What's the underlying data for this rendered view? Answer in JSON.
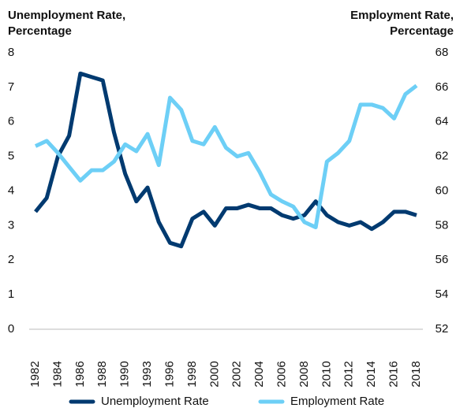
{
  "chart_data": {
    "type": "line",
    "y_label": [
      "Unemployment Rate,",
      "Percentage"
    ],
    "y2_label": [
      "Employment Rate,",
      "Percentage"
    ],
    "categories": [
      "1982",
      null,
      "1984",
      null,
      "1986",
      null,
      "1988",
      null,
      "1990",
      null,
      "1993",
      null,
      "1996",
      null,
      "1998",
      null,
      "2000",
      null,
      "2002",
      null,
      "2004",
      null,
      "2006",
      null,
      "2008",
      null,
      "2010",
      null,
      "2012",
      null,
      "2014",
      null,
      "2016",
      null,
      "2018"
    ],
    "series": [
      {
        "name": "Unemployment Rate",
        "color": "#003a70",
        "axis": "y",
        "values": [
          3.4,
          3.8,
          5.0,
          5.6,
          7.4,
          7.3,
          7.2,
          5.7,
          4.5,
          3.7,
          4.1,
          3.1,
          2.5,
          2.4,
          3.2,
          3.4,
          3.0,
          3.5,
          3.5,
          3.6,
          3.5,
          3.5,
          3.3,
          3.2,
          3.3,
          3.7,
          3.3,
          3.1,
          3.0,
          3.1,
          2.9,
          3.1,
          3.4,
          3.4,
          3.3
        ]
      },
      {
        "name": "Employment Rate",
        "color": "#6dcff6",
        "axis": "y2",
        "values": [
          62.6,
          62.9,
          62.2,
          61.4,
          60.6,
          61.2,
          61.2,
          61.7,
          62.7,
          62.3,
          63.3,
          61.5,
          65.4,
          64.7,
          62.9,
          62.7,
          63.7,
          62.5,
          62.0,
          62.2,
          61.1,
          59.8,
          59.4,
          59.1,
          58.2,
          57.9,
          61.7,
          62.2,
          62.9,
          65.0,
          65.0,
          64.8,
          64.2,
          65.6,
          66.1
        ]
      }
    ],
    "ylim": [
      0,
      8
    ],
    "yticks": [
      0,
      1,
      2,
      3,
      4,
      5,
      6,
      7,
      8
    ],
    "y2lim": [
      52,
      68
    ],
    "y2ticks": [
      52,
      54,
      56,
      58,
      60,
      62,
      64,
      66,
      68
    ],
    "grid": false,
    "legend": "bottom"
  }
}
